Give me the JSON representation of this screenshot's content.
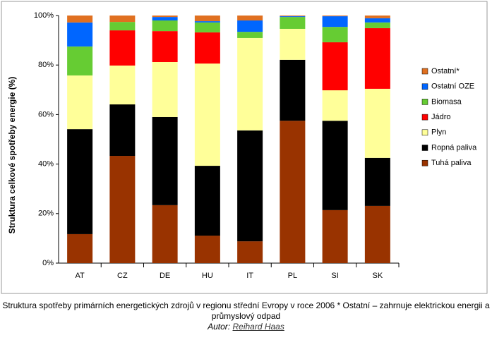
{
  "chart_data": {
    "type": "stacked-bar",
    "y_label": "Struktura celkové spotřeby energie (%)",
    "categories": [
      "AT",
      "CZ",
      "DE",
      "HU",
      "IT",
      "PL",
      "SI",
      "SK"
    ],
    "series": [
      {
        "name": "Tuhá paliva",
        "color": "#993300",
        "values": [
          11.7,
          43.3,
          23.4,
          11.1,
          8.8,
          57.5,
          21.4,
          23.1
        ]
      },
      {
        "name": "Ropná paliva",
        "color": "#000000",
        "values": [
          42.4,
          20.8,
          35.6,
          28.2,
          44.8,
          24.6,
          36.1,
          19.4
        ]
      },
      {
        "name": "Plyn",
        "color": "#ffff99",
        "values": [
          21.7,
          15.7,
          22.2,
          41.3,
          37.3,
          12.5,
          12.3,
          27.9
        ]
      },
      {
        "name": "Jádro",
        "color": "#ff0000",
        "values": [
          0,
          14.2,
          12.5,
          12.6,
          0,
          0,
          19.4,
          24.5
        ]
      },
      {
        "name": "Biomasa",
        "color": "#66cc33",
        "values": [
          11.7,
          3.4,
          4.3,
          4.0,
          2.5,
          4.8,
          6.2,
          2.3
        ]
      },
      {
        "name": "Ostatní OZE",
        "color": "#0066ff",
        "values": [
          9.7,
          0,
          1.4,
          0.5,
          4.6,
          0.3,
          4.3,
          1.7
        ]
      },
      {
        "name": "Ostatní*",
        "color": "#e07020",
        "values": [
          2.8,
          2.6,
          0.6,
          2.3,
          2.0,
          0.3,
          0.3,
          1.1
        ]
      }
    ],
    "ylim": [
      0,
      100
    ],
    "yticks": [
      {
        "value": 0,
        "label": "0%"
      },
      {
        "value": 20,
        "label": "20%"
      },
      {
        "value": 40,
        "label": "40%"
      },
      {
        "value": 60,
        "label": "60%"
      },
      {
        "value": 80,
        "label": "80%"
      },
      {
        "value": 100,
        "label": "100%"
      }
    ]
  },
  "caption": {
    "text": "Struktura spotřeby primárních energetických zdrojů v regionu střední Evropy v roce 2006 * Ostatní – zahrnuje elektrickou energii a průmyslový odpad",
    "author_label": "Autor:",
    "author_name": "Reihard Haas"
  }
}
